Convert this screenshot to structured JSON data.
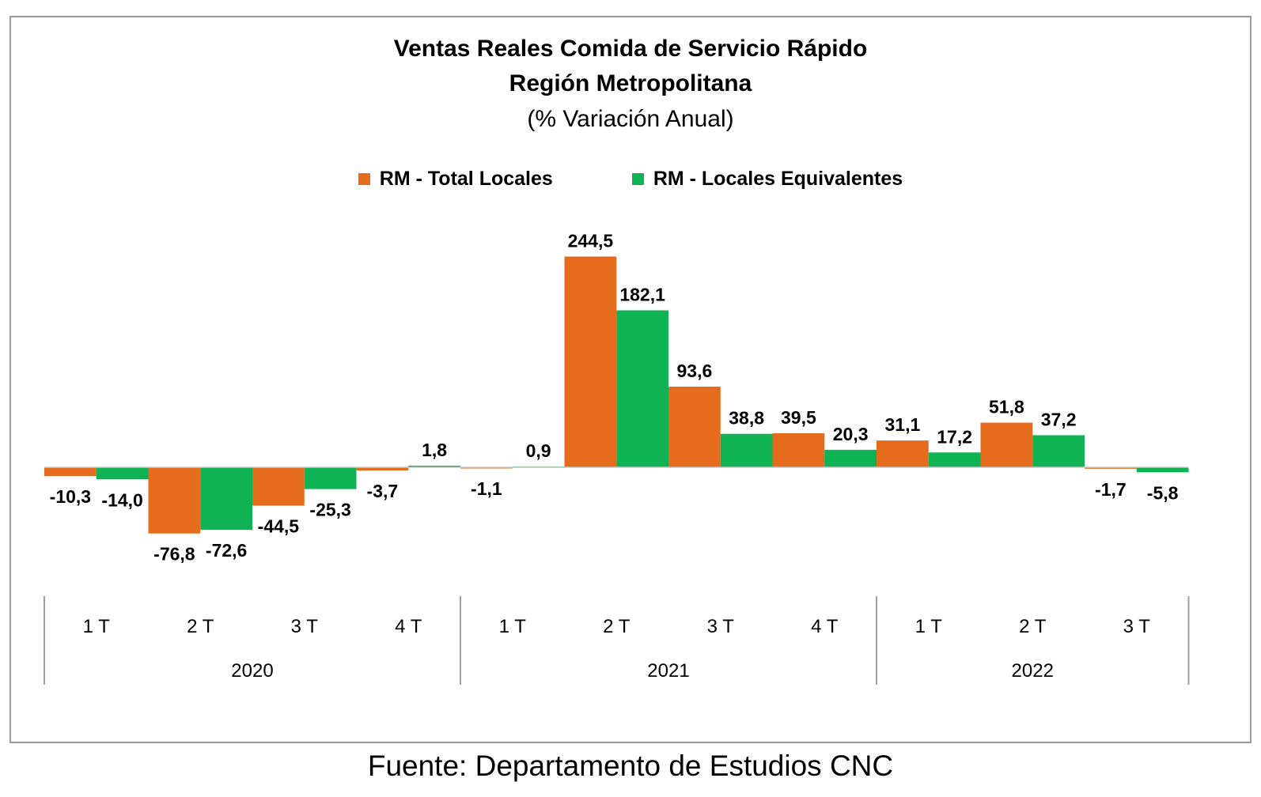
{
  "chart_data": {
    "type": "bar",
    "title": "Ventas Reales Comida de Servicio Rápido",
    "subtitle": "Región Metropolitana",
    "subtitle2": "(% Variación Anual)",
    "source": "Fuente: Departamento de Estudios CNC",
    "categories": [
      "1 T",
      "2 T",
      "3 T",
      "4 T",
      "1 T",
      "2 T",
      "3 T",
      "4 T",
      "1 T",
      "2 T",
      "3 T"
    ],
    "groups": [
      {
        "label": "2020",
        "count": 4
      },
      {
        "label": "2021",
        "count": 4
      },
      {
        "label": "2022",
        "count": 3
      }
    ],
    "series": [
      {
        "name": "RM - Total Locales",
        "color": "#E46C1C",
        "values": [
          -10.3,
          -76.8,
          -44.5,
          -3.7,
          -1.1,
          244.5,
          93.6,
          39.5,
          31.1,
          51.8,
          -1.7
        ],
        "labels": [
          "-10,3",
          "-76,8",
          "-44,5",
          "-3,7",
          "-1,1",
          "244,5",
          "93,6",
          "39,5",
          "31,1",
          "51,8",
          "-1,7"
        ]
      },
      {
        "name": "RM - Locales Equivalentes",
        "color": "#10B353",
        "values": [
          -14.0,
          -72.6,
          -25.3,
          1.8,
          0.9,
          182.1,
          38.8,
          20.3,
          17.2,
          37.2,
          -5.8
        ],
        "labels": [
          "-14,0",
          "-72,6",
          "-25,3",
          "1,8",
          "0,9",
          "182,1",
          "38,8",
          "20,3",
          "17,2",
          "37,2",
          "-5,8"
        ]
      }
    ],
    "legend_position": "top",
    "grid": false
  }
}
